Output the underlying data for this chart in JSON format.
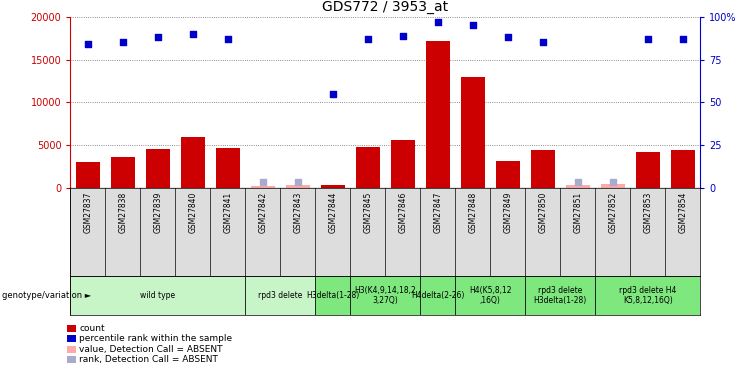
{
  "title": "GDS772 / 3953_at",
  "samples": [
    "GSM27837",
    "GSM27838",
    "GSM27839",
    "GSM27840",
    "GSM27841",
    "GSM27842",
    "GSM27843",
    "GSM27844",
    "GSM27845",
    "GSM27846",
    "GSM27847",
    "GSM27848",
    "GSM27849",
    "GSM27850",
    "GSM27851",
    "GSM27852",
    "GSM27853",
    "GSM27854"
  ],
  "counts": [
    3000,
    3600,
    4500,
    5900,
    4600,
    200,
    300,
    350,
    4800,
    5600,
    17200,
    12900,
    3100,
    4400,
    300,
    400,
    4200,
    4400
  ],
  "absent_count": [
    false,
    false,
    false,
    false,
    false,
    true,
    true,
    false,
    false,
    false,
    false,
    false,
    false,
    false,
    true,
    true,
    false,
    false
  ],
  "ranks": [
    84,
    85,
    88,
    90,
    87,
    3,
    3,
    55,
    87,
    89,
    97,
    95,
    88,
    85,
    3,
    3,
    87,
    87
  ],
  "absent_rank": [
    false,
    false,
    false,
    false,
    false,
    true,
    true,
    false,
    false,
    false,
    false,
    false,
    false,
    false,
    true,
    true,
    false,
    false
  ],
  "ylim_left": [
    0,
    20000
  ],
  "ylim_right": [
    0,
    100
  ],
  "yticks_left": [
    0,
    5000,
    10000,
    15000,
    20000
  ],
  "yticks_right": [
    0,
    25,
    50,
    75,
    100
  ],
  "ytick_labels_right": [
    "0",
    "25",
    "50",
    "75",
    "100%"
  ],
  "groups": [
    {
      "label": "wild type",
      "start": 0,
      "end": 4,
      "color": "#c8f5c8"
    },
    {
      "label": "rpd3 delete",
      "start": 5,
      "end": 6,
      "color": "#c8f5c8"
    },
    {
      "label": "H3delta(1-28)",
      "start": 7,
      "end": 7,
      "color": "#7ee87e"
    },
    {
      "label": "H3(K4,9,14,18,2\n3,27Q)",
      "start": 8,
      "end": 9,
      "color": "#7ee87e"
    },
    {
      "label": "H4delta(2-26)",
      "start": 10,
      "end": 10,
      "color": "#7ee87e"
    },
    {
      "label": "H4(K5,8,12\n,16Q)",
      "start": 11,
      "end": 12,
      "color": "#7ee87e"
    },
    {
      "label": "rpd3 delete\nH3delta(1-28)",
      "start": 13,
      "end": 14,
      "color": "#7ee87e"
    },
    {
      "label": "rpd3 delete H4\nK5,8,12,16Q)",
      "start": 15,
      "end": 17,
      "color": "#7ee87e"
    }
  ],
  "bar_color_present": "#cc0000",
  "bar_color_absent": "#ffaaaa",
  "dot_color_present": "#0000cc",
  "dot_color_absent": "#aaaacc",
  "bg_color": "#ffffff",
  "plot_bg": "#ffffff",
  "title_fontsize": 10,
  "tick_fontsize": 7,
  "label_fontsize": 5.5,
  "group_fontsize": 5.5,
  "legend_items": [
    {
      "label": "count",
      "color": "#cc0000"
    },
    {
      "label": "percentile rank within the sample",
      "color": "#0000cc"
    },
    {
      "label": "value, Detection Call = ABSENT",
      "color": "#ffaaaa"
    },
    {
      "label": "rank, Detection Call = ABSENT",
      "color": "#aaaacc"
    }
  ]
}
